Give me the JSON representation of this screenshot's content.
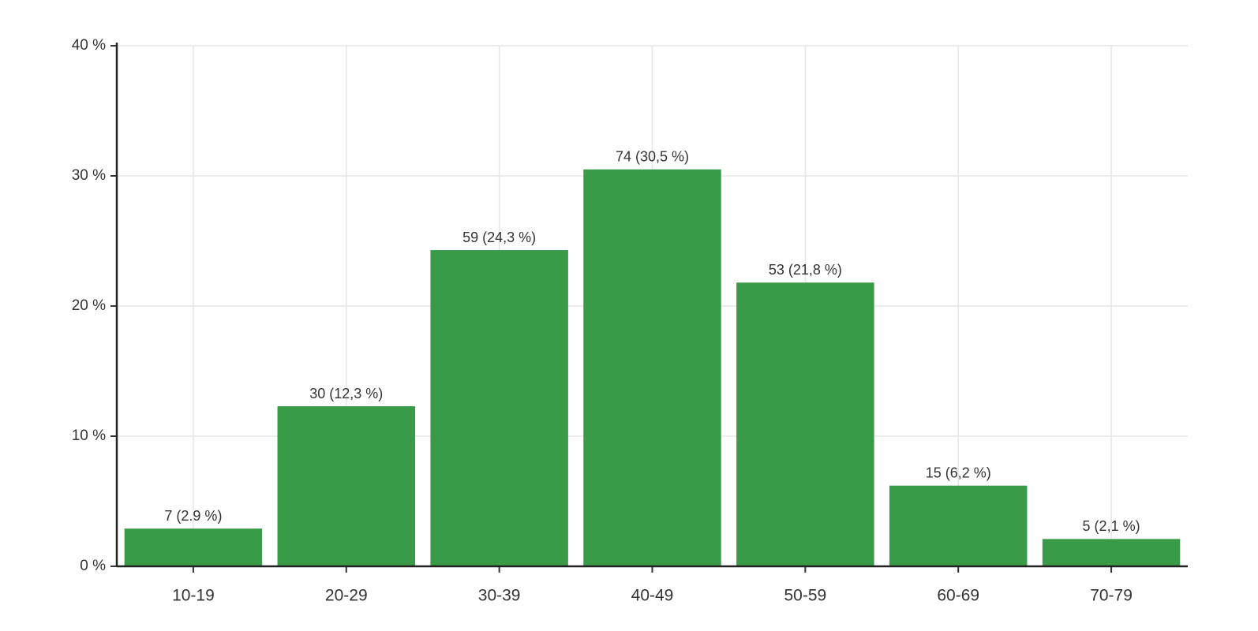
{
  "chart_data": {
    "type": "bar",
    "categories": [
      "10-19",
      "20-29",
      "30-39",
      "40-49",
      "50-59",
      "60-69",
      "70-79"
    ],
    "values": [
      2.9,
      12.3,
      24.3,
      30.5,
      21.8,
      6.2,
      2.1
    ],
    "value_labels": [
      "7 (2.9 %)",
      "30 (12,3 %)",
      "59 (24,3 %)",
      "74 (30,5 %)",
      "53 (21,8 %)",
      "15 (6,2 %)",
      "5 (2,1 %)"
    ],
    "color": "#399b48",
    "ylim": [
      0,
      40
    ],
    "yticks": [
      {
        "value": 0,
        "label": "0 %"
      },
      {
        "value": 10,
        "label": "10 %"
      },
      {
        "value": 20,
        "label": "20 %"
      },
      {
        "value": 30,
        "label": "30 %"
      },
      {
        "value": 40,
        "label": "40 %"
      }
    ],
    "grid": true
  }
}
